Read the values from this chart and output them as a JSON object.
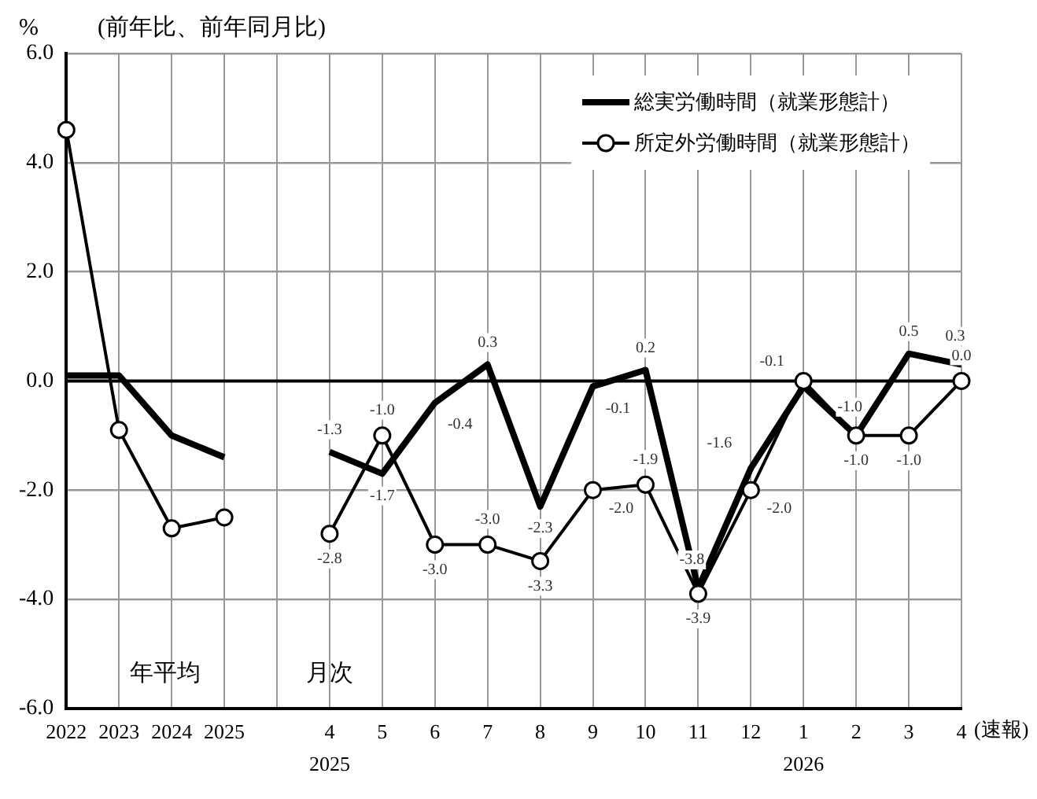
{
  "chart_data": {
    "type": "line",
    "ylabel": "%",
    "subtitle": "(前年比、前年同月比)",
    "categories": [
      "2022",
      "2023",
      "2024",
      "2025",
      null,
      "4",
      "5",
      "6",
      "7",
      "8",
      "9",
      "10",
      "11",
      "12",
      "1",
      "2",
      "3",
      "4"
    ],
    "series": [
      {
        "name": "総実労働時間（就業形態計）",
        "color": "#000000",
        "marker": "none",
        "values": [
          0.1,
          0.1,
          -1.0,
          -1.4,
          null,
          -1.3,
          -1.7,
          -0.4,
          0.3,
          -2.3,
          -0.1,
          0.2,
          -3.8,
          -1.6,
          -0.1,
          -1.0,
          0.5,
          0.3
        ],
        "value_labels": [
          null,
          null,
          null,
          null,
          null,
          "-1.3",
          "-1.7",
          "-0.4",
          "0.3",
          "-2.3",
          "-0.1",
          "0.2",
          "-3.8",
          "-1.6",
          "-0.1",
          "-1.0",
          "0.5",
          "0.3"
        ]
      },
      {
        "name": "所定外労働時間（就業形態計）",
        "color": "#000000",
        "marker": "circle",
        "values": [
          4.6,
          -0.9,
          -2.7,
          -2.5,
          null,
          -2.8,
          -1.0,
          -3.0,
          -3.0,
          -3.3,
          -2.0,
          -1.9,
          -3.9,
          -2.0,
          0.0,
          -1.0,
          -1.0,
          0.0
        ],
        "value_labels": [
          null,
          null,
          null,
          null,
          null,
          "-2.8",
          "-1.0",
          "-3.0",
          "-3.0",
          "-3.3",
          "-2.0",
          "-1.9",
          "-3.9",
          "-2.0",
          null,
          "-1.0",
          "-1.0",
          "0.0"
        ]
      }
    ],
    "ylim": [
      -6,
      6
    ],
    "yticks": [
      {
        "value": -6,
        "label": "-6.0"
      },
      {
        "value": -4,
        "label": "-4.0"
      },
      {
        "value": -2,
        "label": "-2.0"
      },
      {
        "value": 0,
        "label": "0.0"
      },
      {
        "value": 2,
        "label": "2.0"
      },
      {
        "value": 4,
        "label": "4.0"
      },
      {
        "value": 6,
        "label": "6.0"
      }
    ],
    "ref_lines": [
      {
        "axis": "y",
        "value": 0,
        "color": "#000000"
      }
    ],
    "grid": true,
    "legend": "top right",
    "annotations": [
      "年平均",
      "月次",
      "2025",
      "2026",
      "(速報)"
    ]
  }
}
